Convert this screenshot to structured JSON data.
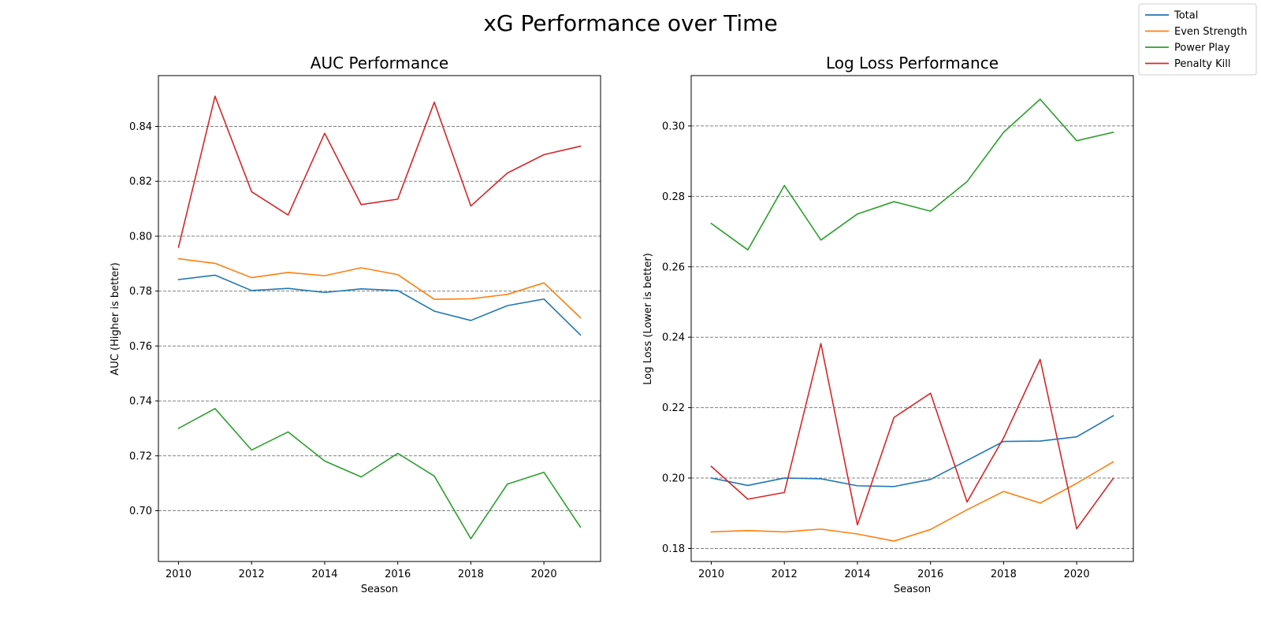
{
  "figure": {
    "suptitle": "xG Performance over Time"
  },
  "legend": {
    "position": "top-right",
    "entries": [
      {
        "name": "Total",
        "color": "#1f77b4"
      },
      {
        "name": "Even Strength",
        "color": "#ff7f0e"
      },
      {
        "name": "Power Play",
        "color": "#2ca02c"
      },
      {
        "name": "Penalty Kill",
        "color": "#d62728"
      }
    ]
  },
  "chart_data": [
    {
      "type": "line",
      "title": "AUC Performance",
      "xlabel": "Season",
      "ylabel": "AUC (Higher is better)",
      "xlim": [
        2009.45,
        2021.55
      ],
      "ylim": [
        0.6815,
        0.8585
      ],
      "x_ticks": [
        2010,
        2012,
        2014,
        2016,
        2018,
        2020
      ],
      "y_ticks": [
        0.7,
        0.72,
        0.74,
        0.76,
        0.78,
        0.8,
        0.82,
        0.84
      ],
      "y_tick_labels": [
        "0.70",
        "0.72",
        "0.74",
        "0.76",
        "0.78",
        "0.80",
        "0.82",
        "0.84"
      ],
      "grid": "horizontal dashed",
      "x": [
        2010,
        2011,
        2012,
        2013,
        2014,
        2015,
        2016,
        2017,
        2018,
        2019,
        2020,
        2021
      ],
      "series": [
        {
          "name": "Total",
          "color": "#1f77b4",
          "values": [
            0.7842,
            0.7858,
            0.7802,
            0.781,
            0.7795,
            0.7808,
            0.7802,
            0.7727,
            0.7693,
            0.7747,
            0.7771,
            0.764
          ]
        },
        {
          "name": "Even Strength",
          "color": "#ff7f0e",
          "values": [
            0.7918,
            0.7901,
            0.7849,
            0.7868,
            0.7856,
            0.7885,
            0.786,
            0.777,
            0.7772,
            0.7788,
            0.783,
            0.7703
          ]
        },
        {
          "name": "Power Play",
          "color": "#2ca02c",
          "values": [
            0.73,
            0.7372,
            0.7221,
            0.7287,
            0.7181,
            0.7123,
            0.7209,
            0.7126,
            0.6898,
            0.7097,
            0.714,
            0.694
          ]
        },
        {
          "name": "Penalty Kill",
          "color": "#d62728",
          "values": [
            0.796,
            0.851,
            0.8162,
            0.8077,
            0.8375,
            0.8115,
            0.8135,
            0.8488,
            0.811,
            0.823,
            0.8297,
            0.8328
          ]
        }
      ]
    },
    {
      "type": "line",
      "title": "Log Loss Performance",
      "xlabel": "Season",
      "ylabel": "Log Loss (Lower is better)",
      "xlim": [
        2009.45,
        2021.55
      ],
      "ylim": [
        0.1763,
        0.3143
      ],
      "x_ticks": [
        2010,
        2012,
        2014,
        2016,
        2018,
        2020
      ],
      "y_ticks": [
        0.18,
        0.2,
        0.22,
        0.24,
        0.26,
        0.28,
        0.3
      ],
      "y_tick_labels": [
        "0.18",
        "0.20",
        "0.22",
        "0.24",
        "0.26",
        "0.28",
        "0.30"
      ],
      "grid": "horizontal dashed",
      "x": [
        2010,
        2011,
        2012,
        2013,
        2014,
        2015,
        2016,
        2017,
        2018,
        2019,
        2020,
        2021
      ],
      "series": [
        {
          "name": "Total",
          "color": "#1f77b4",
          "values": [
            0.2,
            0.1979,
            0.2,
            0.1998,
            0.1978,
            0.1976,
            0.1996,
            0.205,
            0.2104,
            0.2105,
            0.2117,
            0.2177
          ]
        },
        {
          "name": "Even Strength",
          "color": "#ff7f0e",
          "values": [
            0.1847,
            0.1851,
            0.1847,
            0.1855,
            0.1841,
            0.1821,
            0.1854,
            0.191,
            0.1962,
            0.1929,
            0.1985,
            0.2046
          ]
        },
        {
          "name": "Power Play",
          "color": "#2ca02c",
          "values": [
            0.2723,
            0.2648,
            0.2831,
            0.2676,
            0.275,
            0.2785,
            0.2758,
            0.2842,
            0.2982,
            0.3076,
            0.2958,
            0.2982
          ]
        },
        {
          "name": "Penalty Kill",
          "color": "#d62728",
          "values": [
            0.2033,
            0.194,
            0.1959,
            0.2382,
            0.1867,
            0.2172,
            0.2241,
            0.1932,
            0.2114,
            0.2337,
            0.1856,
            0.1999
          ]
        }
      ]
    }
  ]
}
